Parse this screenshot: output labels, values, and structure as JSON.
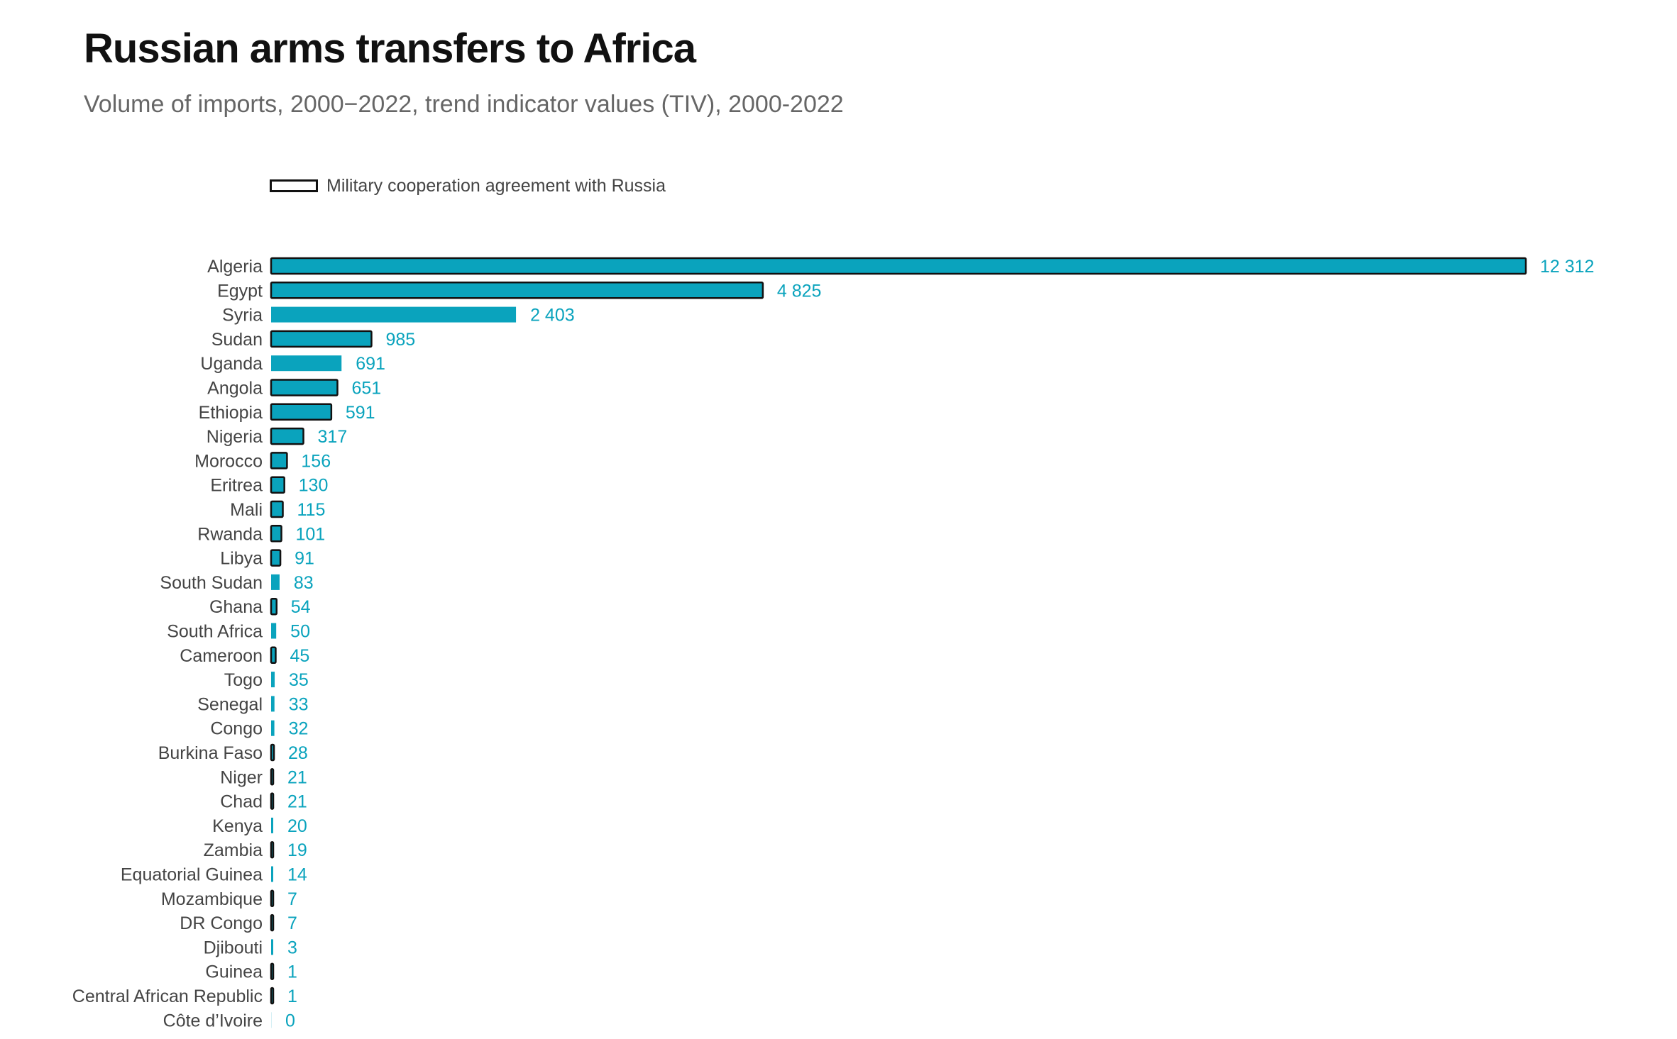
{
  "chart_data": {
    "type": "bar",
    "orientation": "horizontal",
    "title": "Russian arms transfers to Africa",
    "subtitle": "Volume of imports, 2000−2022, trend indicator values (TIV), 2000-2022",
    "legend": {
      "label": "Military cooperation agreement with Russia",
      "placement": "top-left"
    },
    "colors": {
      "bar": "#0aa3bd",
      "agreement_outline": "#111111",
      "value_label": "#0aa3bd",
      "category_label": "#444444"
    },
    "xlim": [
      0,
      12312
    ],
    "grid": false,
    "categories": [
      "Algeria",
      "Egypt",
      "Syria",
      "Sudan",
      "Uganda",
      "Angola",
      "Ethiopia",
      "Nigeria",
      "Morocco",
      "Eritrea",
      "Mali",
      "Rwanda",
      "Libya",
      "South Sudan",
      "Ghana",
      "South Africa",
      "Cameroon",
      "Togo",
      "Senegal",
      "Congo",
      "Burkina Faso",
      "Niger",
      "Chad",
      "Kenya",
      "Zambia",
      "Equatorial Guinea",
      "Mozambique",
      "DR Congo",
      "Djibouti",
      "Guinea",
      "Central African Republic",
      "Côte d’Ivoire"
    ],
    "values": [
      12312,
      4825,
      2403,
      985,
      691,
      651,
      591,
      317,
      156,
      130,
      115,
      101,
      91,
      83,
      54,
      50,
      45,
      35,
      33,
      32,
      28,
      21,
      21,
      20,
      19,
      14,
      7,
      7,
      3,
      1,
      1,
      0
    ],
    "value_labels": [
      "12 312",
      "4 825",
      "2 403",
      "985",
      "691",
      "651",
      "591",
      "317",
      "156",
      "130",
      "115",
      "101",
      "91",
      "83",
      "54",
      "50",
      "45",
      "35",
      "33",
      "32",
      "28",
      "21",
      "21",
      "20",
      "19",
      "14",
      "7",
      "7",
      "3",
      "1",
      "1",
      "0"
    ],
    "military_agreement": [
      true,
      true,
      false,
      true,
      false,
      true,
      true,
      true,
      true,
      true,
      true,
      true,
      true,
      false,
      true,
      false,
      true,
      false,
      false,
      false,
      true,
      true,
      true,
      false,
      true,
      false,
      true,
      true,
      false,
      true,
      true,
      false
    ]
  }
}
